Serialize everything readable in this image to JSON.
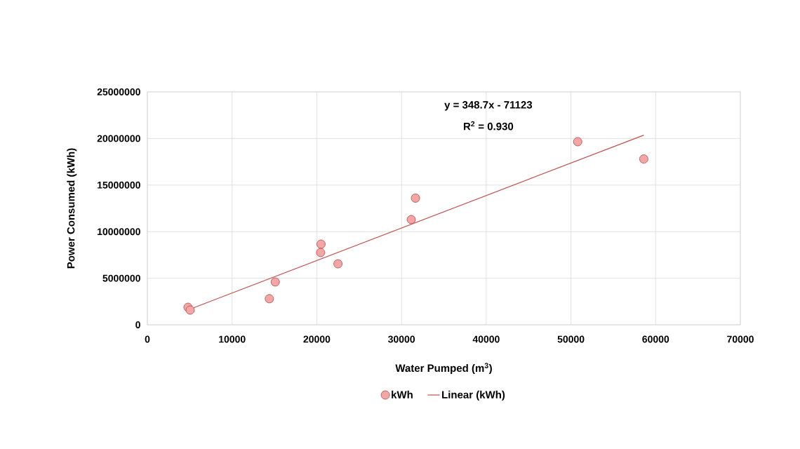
{
  "chart_data": {
    "type": "scatter",
    "xlabel": "Water Pumped (m$^{3}$)",
    "ylabel": "Power Consumed (kWh)",
    "xlim": [
      0,
      70000
    ],
    "xticks": [
      0,
      10000,
      20000,
      30000,
      40000,
      50000,
      60000,
      70000
    ],
    "ylim": [
      0,
      25000000
    ],
    "yticks": [
      0,
      5000000,
      10000000,
      15000000,
      20000000,
      25000000
    ],
    "grid": true,
    "legend": "bottom",
    "annotations": [
      "y = 348.7x - 71123",
      "R$^{2}$ = 0.930"
    ],
    "series": [
      {
        "name": "kWh",
        "marker": "circle",
        "color": "#f4a6a6",
        "x": [
          4800,
          5050,
          14400,
          15100,
          20500,
          20450,
          22500,
          31150,
          31650,
          50800,
          58600
        ],
        "values": [
          1880000,
          1580000,
          2800000,
          4600000,
          8660000,
          7760000,
          6550000,
          11300000,
          13600000,
          19650000,
          17800000
        ]
      },
      {
        "name": "Linear (kWh)",
        "type": "line",
        "marker": "none",
        "color": "#c0504d",
        "x": [
          4800,
          58600
        ],
        "values": [
          1600000,
          20360000
        ]
      }
    ]
  }
}
